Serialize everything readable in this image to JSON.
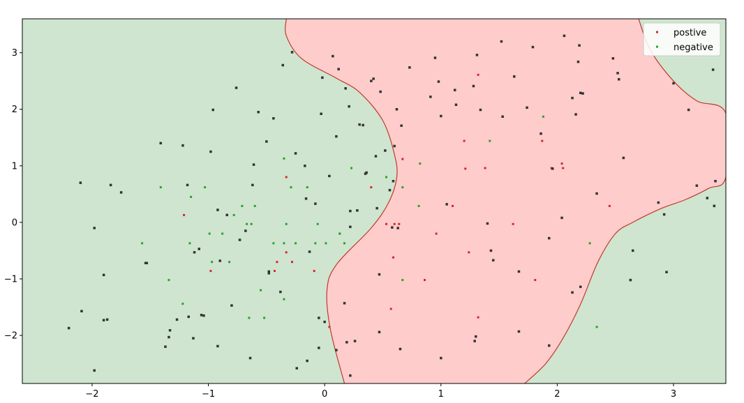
{
  "chart_data": {
    "type": "scatter",
    "title": "",
    "xlabel": "",
    "ylabel": "",
    "xlim": [
      -2.6,
      3.45
    ],
    "ylim": [
      -2.85,
      3.6
    ],
    "xticks": [
      -2,
      -1,
      0,
      1,
      2,
      3
    ],
    "yticks": [
      -2,
      -1,
      0,
      1,
      2,
      3
    ],
    "tick_labels_x": [
      "−2",
      "−1",
      "0",
      "1",
      "2",
      "3"
    ],
    "tick_labels_y": [
      "−2",
      "−1",
      "0",
      "1",
      "2",
      "3"
    ],
    "grid": false,
    "legend": {
      "position": "top-right",
      "entries": [
        {
          "label": "postive",
          "color": "#d62728"
        },
        {
          "label": "negative",
          "color": "#2ca02c"
        }
      ]
    },
    "regions": {
      "positive_fill": "#ffcccc",
      "negative_fill": "#cfe5cf",
      "boundary_color": "#c0392b",
      "positive_boundary_left": [
        [
          -0.33,
          3.6
        ],
        [
          -0.33,
          3.3
        ],
        [
          -0.2,
          2.9
        ],
        [
          0.1,
          2.55
        ],
        [
          0.3,
          2.3
        ],
        [
          0.5,
          1.8
        ],
        [
          0.6,
          1.2
        ],
        [
          0.62,
          0.8
        ],
        [
          0.55,
          0.35
        ],
        [
          0.4,
          -0.1
        ],
        [
          0.1,
          -0.75
        ],
        [
          0.02,
          -1.2
        ],
        [
          0.05,
          -1.9
        ],
        [
          0.17,
          -2.85
        ]
      ],
      "positive_boundary_right": [
        [
          1.72,
          -2.85
        ],
        [
          1.9,
          -2.5
        ],
        [
          2.05,
          -2.05
        ],
        [
          2.2,
          -1.45
        ],
        [
          2.35,
          -0.7
        ],
        [
          2.5,
          -0.2
        ],
        [
          2.65,
          0.0
        ],
        [
          2.9,
          0.25
        ],
        [
          3.1,
          0.4
        ],
        [
          3.3,
          0.6
        ],
        [
          3.45,
          0.8
        ],
        [
          3.45,
          1.93
        ],
        [
          3.2,
          2.15
        ],
        [
          3.0,
          2.5
        ],
        [
          2.8,
          3.05
        ],
        [
          2.7,
          3.6
        ]
      ]
    },
    "series": [
      {
        "name": "postive",
        "color": "#d62728",
        "x": [
          1.32,
          1.2,
          1.21,
          1.38,
          1.95,
          2.04,
          2.05,
          1.87,
          1.1,
          0.96,
          0.67,
          0.4,
          0.6,
          0.53,
          0.64,
          1.24,
          1.62,
          2.45,
          0.59,
          0.86,
          0.57,
          1.32,
          1.81,
          0.04,
          -0.09,
          -0.33,
          -0.41,
          -0.28,
          -0.43,
          -0.33,
          -0.98,
          -1.21
        ],
        "y": [
          2.61,
          1.44,
          0.95,
          0.96,
          0.96,
          1.04,
          0.96,
          1.44,
          0.29,
          -0.2,
          1.12,
          0.62,
          -0.03,
          -0.03,
          -0.03,
          -0.53,
          -0.03,
          0.29,
          -0.62,
          -1.02,
          -1.53,
          -1.68,
          -1.02,
          -1.85,
          -0.86,
          0.8,
          -0.7,
          -0.7,
          -0.86,
          -0.53,
          -0.86,
          0.13
        ]
      },
      {
        "name": "negative",
        "color": "#2ca02c",
        "x": [
          0.23,
          -0.35,
          -0.15,
          -0.29,
          -1.41,
          -1.15,
          -1.03,
          -0.33,
          -0.06,
          0.13,
          0.53,
          0.67,
          0.81,
          0.82,
          1.42,
          1.88,
          2.28,
          2.34,
          0.67,
          -0.55,
          -0.52,
          -0.35,
          -0.65,
          -0.97,
          -1.16,
          -1.34,
          -1.57,
          -1.22,
          -0.71,
          -0.78,
          -0.67,
          -0.6,
          -0.99,
          -0.88,
          -0.82,
          -0.44,
          -0.25,
          -0.35,
          -0.08,
          0.01,
          0.13,
          0.17,
          -0.63
        ],
        "y": [
          0.96,
          1.13,
          0.62,
          0.62,
          0.62,
          0.45,
          0.62,
          -0.03,
          -0.03,
          -0.2,
          0.8,
          0.62,
          0.29,
          1.04,
          1.44,
          1.87,
          -0.37,
          -1.85,
          -1.02,
          -1.2,
          -1.69,
          -1.36,
          -1.69,
          -0.7,
          -0.37,
          -1.02,
          -0.37,
          -1.44,
          0.29,
          0.13,
          -0.03,
          0.29,
          -0.2,
          -0.2,
          -0.7,
          -0.37,
          -0.37,
          -0.37,
          -0.37,
          -0.37,
          -0.2,
          -0.37,
          -0.03
        ]
      },
      {
        "name": "",
        "color": "#333333",
        "x": [
          -2.1,
          -1.84,
          -1.75,
          -1.98,
          -1.9,
          -1.53,
          -1.41,
          -1.22,
          -1.18,
          -1.12,
          -1.08,
          -1.04,
          -0.98,
          -0.96,
          -0.92,
          -0.9,
          -0.84,
          -0.76,
          -0.73,
          -0.68,
          -0.62,
          -0.61,
          -0.57,
          -0.5,
          -0.44,
          -0.36,
          -0.28,
          -0.25,
          -0.17,
          -0.16,
          -0.08,
          -0.03,
          -0.02,
          0.04,
          0.07,
          0.1,
          0.12,
          0.18,
          0.21,
          0.22,
          0.28,
          0.3,
          0.33,
          0.36,
          0.4,
          0.42,
          0.45,
          0.48,
          0.52,
          0.56,
          0.6,
          0.62,
          0.66,
          0.73,
          0.91,
          0.95,
          0.98,
          1.0,
          1.12,
          1.13,
          1.28,
          1.31,
          1.34,
          1.4,
          1.43,
          1.45,
          1.53,
          1.52,
          1.63,
          1.67,
          1.74,
          1.79,
          1.86,
          1.93,
          1.96,
          2.04,
          2.06,
          2.13,
          2.16,
          2.18,
          2.19,
          2.2,
          2.22,
          2.34,
          2.48,
          2.52,
          2.53,
          2.57,
          2.63,
          2.65,
          2.87,
          2.92,
          2.94,
          3.0,
          3.13,
          3.2,
          3.29,
          3.35,
          3.36,
          3.34,
          2.2,
          2.13,
          1.93,
          1.67,
          1.3,
          1.29,
          1.0,
          0.65,
          0.47,
          0.26,
          0.19,
          0.17,
          0.22,
          -0.05,
          0.0,
          -0.05,
          -0.15,
          -0.38,
          -0.48,
          -0.48,
          -0.8,
          -0.92,
          -0.64,
          -1.06,
          -1.13,
          -1.17,
          -1.27,
          -1.33,
          -1.37,
          -1.34,
          -1.9,
          -1.87,
          -2.2,
          -1.98,
          -2.09,
          -1.54,
          -0.24,
          0.1,
          0.22,
          0.63,
          0.58,
          0.47,
          -0.13,
          0.44,
          0.35,
          1.05,
          0.59
        ],
        "y": [
          0.7,
          0.66,
          0.53,
          -0.1,
          -0.93,
          -0.72,
          1.4,
          1.36,
          0.66,
          -0.53,
          -0.47,
          -1.65,
          1.25,
          1.99,
          0.22,
          -0.68,
          0.13,
          2.38,
          -0.31,
          -0.15,
          0.66,
          1.02,
          1.95,
          1.43,
          1.84,
          2.78,
          3.01,
          1.22,
          1.0,
          0.42,
          0.33,
          1.92,
          2.56,
          0.82,
          2.94,
          1.52,
          2.71,
          2.37,
          2.05,
          0.2,
          0.21,
          1.73,
          1.72,
          0.88,
          2.5,
          2.54,
          0.25,
          2.31,
          1.27,
          0.57,
          1.35,
          2.0,
          1.71,
          2.74,
          2.22,
          2.91,
          2.49,
          1.88,
          2.34,
          2.08,
          2.41,
          2.96,
          1.99,
          -0.02,
          -0.5,
          -0.67,
          1.87,
          3.2,
          2.58,
          -0.87,
          2.03,
          3.1,
          1.57,
          -0.28,
          0.95,
          0.08,
          3.3,
          2.2,
          1.91,
          2.84,
          3.13,
          2.29,
          2.28,
          0.51,
          2.9,
          2.64,
          2.53,
          1.14,
          -1.02,
          -0.5,
          0.35,
          0.14,
          -0.88,
          2.46,
          1.99,
          0.65,
          0.43,
          0.29,
          0.73,
          2.7,
          -1.14,
          -1.24,
          -2.18,
          -1.93,
          -2.02,
          -2.1,
          -2.4,
          -2.24,
          -1.94,
          -2.1,
          -2.12,
          -1.43,
          -2.71,
          -2.22,
          -1.76,
          -1.69,
          -2.45,
          -1.23,
          -0.87,
          -0.9,
          -1.47,
          -2.19,
          -2.4,
          -1.64,
          -2.05,
          -1.67,
          -1.72,
          -1.91,
          -2.2,
          -2.03,
          -1.73,
          -1.72,
          -1.87,
          -2.62,
          -1.57,
          -0.72,
          -2.58,
          -2.26,
          -0.08,
          -0.1,
          -0.09,
          -0.92,
          -0.52,
          1.17,
          0.86,
          0.32,
          0.73
        ],
        "label": ""
      }
    ],
    "extra_points_label": "",
    "annotations": []
  }
}
